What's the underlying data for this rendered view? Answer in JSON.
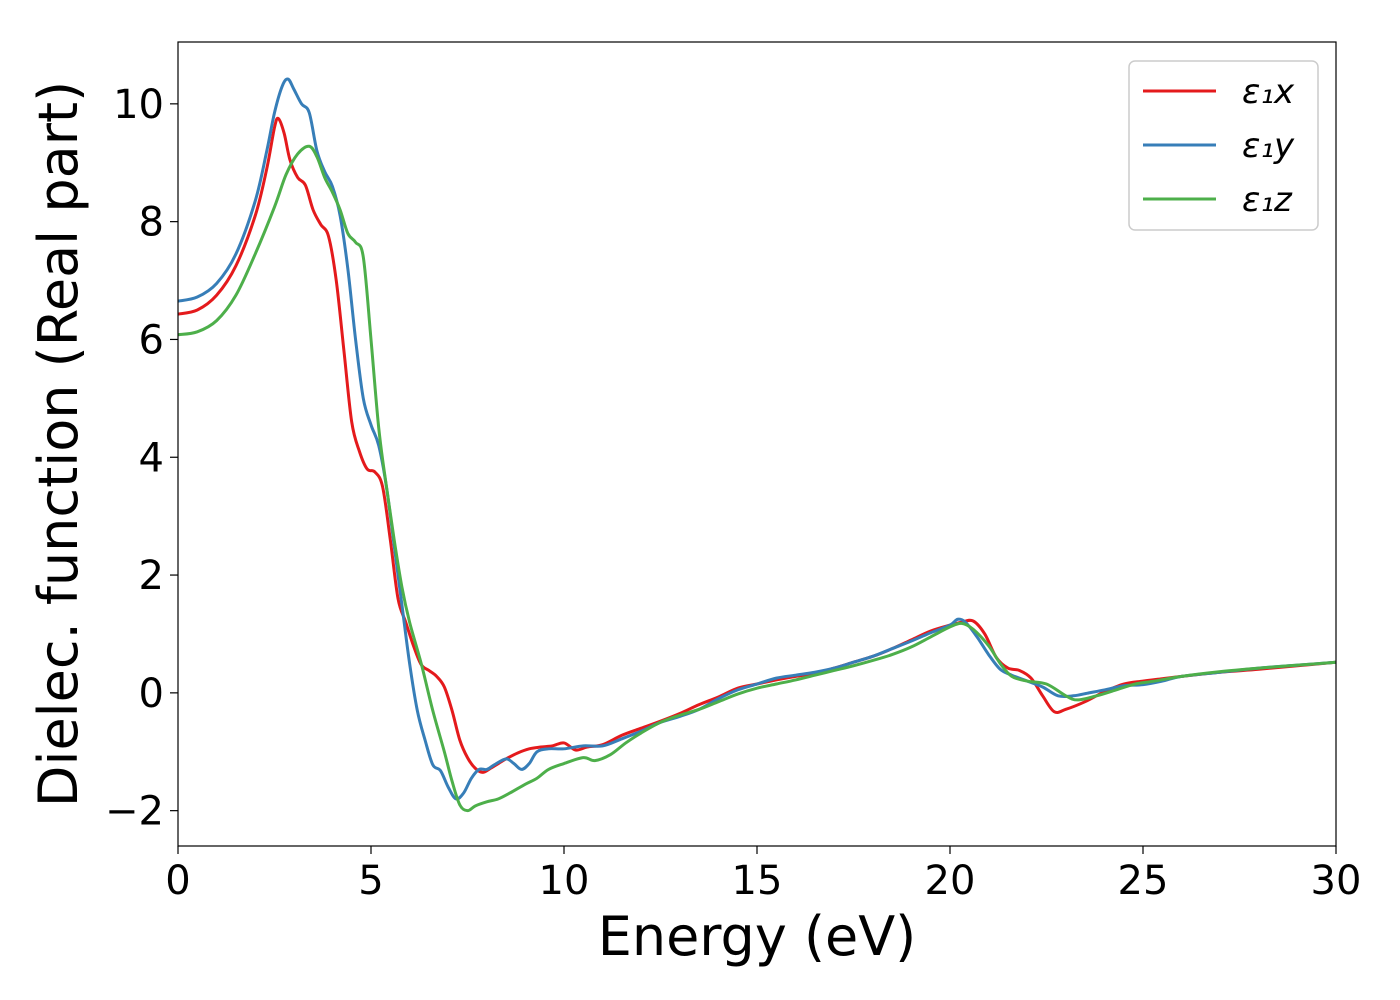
{
  "chart_data": {
    "type": "line",
    "xlabel": "Energy (eV)",
    "ylabel": "Dielec. function (Real part)",
    "xlim": [
      0,
      30
    ],
    "ylim": [
      -2.6,
      11.05
    ],
    "xticks": [
      0,
      5,
      10,
      15,
      20,
      25,
      30
    ],
    "xtick_labels": [
      "0",
      "5",
      "10",
      "15",
      "20",
      "25",
      "30"
    ],
    "yticks": [
      -2,
      0,
      2,
      4,
      6,
      8,
      10
    ],
    "ytick_labels": [
      "−2",
      "0",
      "2",
      "4",
      "6",
      "8",
      "10"
    ],
    "grid": false,
    "legend_position": "top-right",
    "series": [
      {
        "name": "ε₁x",
        "color": "#e41a1c",
        "points": [
          [
            0,
            6.43
          ],
          [
            0.5,
            6.5
          ],
          [
            1,
            6.75
          ],
          [
            1.5,
            7.25
          ],
          [
            2,
            8.1
          ],
          [
            2.3,
            8.9
          ],
          [
            2.5,
            9.6
          ],
          [
            2.6,
            9.75
          ],
          [
            2.75,
            9.5
          ],
          [
            2.9,
            9.05
          ],
          [
            3.1,
            8.75
          ],
          [
            3.3,
            8.62
          ],
          [
            3.5,
            8.2
          ],
          [
            3.7,
            7.95
          ],
          [
            3.9,
            7.75
          ],
          [
            4.1,
            7.0
          ],
          [
            4.3,
            5.8
          ],
          [
            4.5,
            4.6
          ],
          [
            4.7,
            4.1
          ],
          [
            4.9,
            3.8
          ],
          [
            5.1,
            3.75
          ],
          [
            5.3,
            3.5
          ],
          [
            5.5,
            2.6
          ],
          [
            5.7,
            1.6
          ],
          [
            5.9,
            1.2
          ],
          [
            6.1,
            0.8
          ],
          [
            6.3,
            0.48
          ],
          [
            6.5,
            0.38
          ],
          [
            6.7,
            0.28
          ],
          [
            6.9,
            0.1
          ],
          [
            7.1,
            -0.3
          ],
          [
            7.3,
            -0.8
          ],
          [
            7.5,
            -1.1
          ],
          [
            7.7,
            -1.28
          ],
          [
            7.9,
            -1.35
          ],
          [
            8.1,
            -1.28
          ],
          [
            8.3,
            -1.2
          ],
          [
            8.5,
            -1.12
          ],
          [
            8.8,
            -1.02
          ],
          [
            9.1,
            -0.95
          ],
          [
            9.4,
            -0.92
          ],
          [
            9.7,
            -0.9
          ],
          [
            10,
            -0.85
          ],
          [
            10.3,
            -0.97
          ],
          [
            10.6,
            -0.92
          ],
          [
            11,
            -0.88
          ],
          [
            11.5,
            -0.72
          ],
          [
            12,
            -0.6
          ],
          [
            12.5,
            -0.48
          ],
          [
            13,
            -0.35
          ],
          [
            13.5,
            -0.2
          ],
          [
            14,
            -0.07
          ],
          [
            14.5,
            0.08
          ],
          [
            15,
            0.15
          ],
          [
            15.5,
            0.22
          ],
          [
            16,
            0.28
          ],
          [
            16.5,
            0.33
          ],
          [
            17,
            0.42
          ],
          [
            17.5,
            0.52
          ],
          [
            18,
            0.62
          ],
          [
            18.5,
            0.75
          ],
          [
            19,
            0.9
          ],
          [
            19.5,
            1.05
          ],
          [
            20,
            1.15
          ],
          [
            20.3,
            1.2
          ],
          [
            20.6,
            1.22
          ],
          [
            20.9,
            1.0
          ],
          [
            21.2,
            0.6
          ],
          [
            21.5,
            0.42
          ],
          [
            21.8,
            0.38
          ],
          [
            22.1,
            0.25
          ],
          [
            22.4,
            -0.05
          ],
          [
            22.7,
            -0.32
          ],
          [
            23,
            -0.28
          ],
          [
            23.5,
            -0.15
          ],
          [
            24,
            0.02
          ],
          [
            24.5,
            0.15
          ],
          [
            25,
            0.2
          ],
          [
            25.5,
            0.24
          ],
          [
            26,
            0.28
          ],
          [
            27,
            0.35
          ],
          [
            28,
            0.4
          ],
          [
            29,
            0.46
          ],
          [
            30,
            0.52
          ]
        ]
      },
      {
        "name": "ε₁y",
        "color": "#377eb8",
        "points": [
          [
            0,
            6.65
          ],
          [
            0.5,
            6.72
          ],
          [
            1,
            6.95
          ],
          [
            1.5,
            7.45
          ],
          [
            2,
            8.35
          ],
          [
            2.3,
            9.2
          ],
          [
            2.5,
            9.85
          ],
          [
            2.7,
            10.3
          ],
          [
            2.85,
            10.42
          ],
          [
            3.0,
            10.25
          ],
          [
            3.2,
            10.0
          ],
          [
            3.4,
            9.85
          ],
          [
            3.6,
            9.2
          ],
          [
            3.8,
            8.85
          ],
          [
            4.0,
            8.6
          ],
          [
            4.2,
            8.1
          ],
          [
            4.4,
            7.2
          ],
          [
            4.6,
            6.0
          ],
          [
            4.8,
            5.0
          ],
          [
            5.0,
            4.55
          ],
          [
            5.2,
            4.2
          ],
          [
            5.4,
            3.5
          ],
          [
            5.6,
            2.5
          ],
          [
            5.8,
            1.5
          ],
          [
            6.0,
            0.5
          ],
          [
            6.2,
            -0.3
          ],
          [
            6.4,
            -0.8
          ],
          [
            6.6,
            -1.22
          ],
          [
            6.8,
            -1.32
          ],
          [
            7.0,
            -1.6
          ],
          [
            7.2,
            -1.8
          ],
          [
            7.4,
            -1.7
          ],
          [
            7.6,
            -1.45
          ],
          [
            7.8,
            -1.3
          ],
          [
            8.0,
            -1.3
          ],
          [
            8.2,
            -1.22
          ],
          [
            8.5,
            -1.12
          ],
          [
            8.7,
            -1.2
          ],
          [
            8.9,
            -1.3
          ],
          [
            9.1,
            -1.2
          ],
          [
            9.3,
            -1.0
          ],
          [
            9.6,
            -0.95
          ],
          [
            10,
            -0.95
          ],
          [
            10.5,
            -0.9
          ],
          [
            11,
            -0.9
          ],
          [
            11.5,
            -0.78
          ],
          [
            12,
            -0.65
          ],
          [
            12.5,
            -0.5
          ],
          [
            13,
            -0.4
          ],
          [
            13.5,
            -0.28
          ],
          [
            14,
            -0.1
          ],
          [
            14.5,
            0.05
          ],
          [
            15,
            0.15
          ],
          [
            15.5,
            0.25
          ],
          [
            16,
            0.3
          ],
          [
            16.5,
            0.35
          ],
          [
            17,
            0.42
          ],
          [
            17.5,
            0.52
          ],
          [
            18,
            0.62
          ],
          [
            18.5,
            0.75
          ],
          [
            19,
            0.88
          ],
          [
            19.5,
            1.02
          ],
          [
            20,
            1.15
          ],
          [
            20.2,
            1.25
          ],
          [
            20.4,
            1.2
          ],
          [
            20.7,
            0.95
          ],
          [
            21,
            0.65
          ],
          [
            21.3,
            0.4
          ],
          [
            21.6,
            0.3
          ],
          [
            22,
            0.2
          ],
          [
            22.4,
            0.1
          ],
          [
            22.8,
            -0.05
          ],
          [
            23.2,
            -0.05
          ],
          [
            23.6,
            0.0
          ],
          [
            24,
            0.05
          ],
          [
            24.5,
            0.12
          ],
          [
            25,
            0.14
          ],
          [
            25.5,
            0.2
          ],
          [
            26,
            0.28
          ],
          [
            27,
            0.35
          ],
          [
            28,
            0.42
          ],
          [
            29,
            0.47
          ],
          [
            30,
            0.52
          ]
        ]
      },
      {
        "name": "ε₁z",
        "color": "#4daf4a",
        "points": [
          [
            0,
            6.08
          ],
          [
            0.5,
            6.13
          ],
          [
            1,
            6.32
          ],
          [
            1.5,
            6.75
          ],
          [
            2,
            7.45
          ],
          [
            2.5,
            8.25
          ],
          [
            2.8,
            8.8
          ],
          [
            3.1,
            9.15
          ],
          [
            3.4,
            9.28
          ],
          [
            3.6,
            9.1
          ],
          [
            3.8,
            8.75
          ],
          [
            4.0,
            8.5
          ],
          [
            4.2,
            8.2
          ],
          [
            4.4,
            7.8
          ],
          [
            4.6,
            7.65
          ],
          [
            4.8,
            7.4
          ],
          [
            5.0,
            6.0
          ],
          [
            5.2,
            4.5
          ],
          [
            5.4,
            3.5
          ],
          [
            5.6,
            2.6
          ],
          [
            5.8,
            1.8
          ],
          [
            6.0,
            1.2
          ],
          [
            6.3,
            0.5
          ],
          [
            6.6,
            -0.3
          ],
          [
            6.9,
            -1.0
          ],
          [
            7.1,
            -1.5
          ],
          [
            7.3,
            -1.9
          ],
          [
            7.5,
            -2.0
          ],
          [
            7.7,
            -1.92
          ],
          [
            8.0,
            -1.85
          ],
          [
            8.3,
            -1.8
          ],
          [
            8.6,
            -1.7
          ],
          [
            9.0,
            -1.55
          ],
          [
            9.3,
            -1.45
          ],
          [
            9.6,
            -1.3
          ],
          [
            10,
            -1.2
          ],
          [
            10.5,
            -1.1
          ],
          [
            10.8,
            -1.15
          ],
          [
            11.2,
            -1.05
          ],
          [
            11.6,
            -0.85
          ],
          [
            12,
            -0.68
          ],
          [
            12.5,
            -0.5
          ],
          [
            13,
            -0.38
          ],
          [
            13.5,
            -0.28
          ],
          [
            14,
            -0.15
          ],
          [
            14.5,
            -0.02
          ],
          [
            15,
            0.08
          ],
          [
            15.5,
            0.15
          ],
          [
            16,
            0.22
          ],
          [
            16.5,
            0.3
          ],
          [
            17,
            0.38
          ],
          [
            17.5,
            0.46
          ],
          [
            18,
            0.55
          ],
          [
            18.5,
            0.65
          ],
          [
            19,
            0.78
          ],
          [
            19.5,
            0.95
          ],
          [
            20,
            1.12
          ],
          [
            20.3,
            1.18
          ],
          [
            20.6,
            1.08
          ],
          [
            21,
            0.8
          ],
          [
            21.3,
            0.5
          ],
          [
            21.6,
            0.28
          ],
          [
            22,
            0.2
          ],
          [
            22.5,
            0.15
          ],
          [
            23,
            -0.05
          ],
          [
            23.3,
            -0.12
          ],
          [
            23.8,
            -0.05
          ],
          [
            24.3,
            0.05
          ],
          [
            24.8,
            0.15
          ],
          [
            25.3,
            0.2
          ],
          [
            26,
            0.28
          ],
          [
            27,
            0.36
          ],
          [
            28,
            0.42
          ],
          [
            29,
            0.47
          ],
          [
            30,
            0.52
          ]
        ]
      }
    ]
  }
}
